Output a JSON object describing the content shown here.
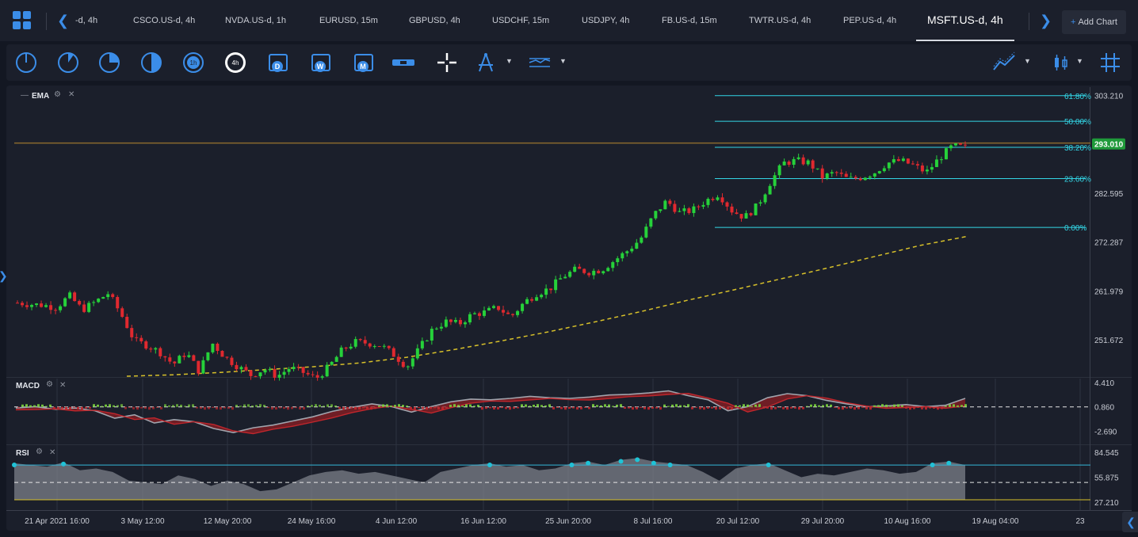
{
  "tabs": [
    {
      "label": "-d, 4h"
    },
    {
      "label": "CSCO.US-d, 4h"
    },
    {
      "label": "NVDA.US-d, 1h"
    },
    {
      "label": "EURUSD, 15m"
    },
    {
      "label": "GBPUSD, 4h"
    },
    {
      "label": "USDCHF, 15m"
    },
    {
      "label": "USDJPY, 4h"
    },
    {
      "label": "FB.US-d, 15m"
    },
    {
      "label": "TWTR.US-d, 4h"
    },
    {
      "label": "PEP.US-d, 4h"
    },
    {
      "label": "MSFT.US-d, 4h",
      "active": true
    }
  ],
  "add_chart_label": "Add Chart",
  "toolbar": {
    "timeframe_icons": [
      "clock-quarter-icon",
      "clock-third-icon",
      "clock-half-icon",
      "clock-full-icon",
      "clock-1h-icon",
      "clock-4h-icon"
    ],
    "clock_1h_label": "1h",
    "clock_4h_label": "4h",
    "calendar_labels": [
      "D",
      "W",
      "M"
    ],
    "right_icons": [
      "chart-type-line-icon",
      "candles-icon",
      "crosshair-grid-icon"
    ]
  },
  "indicators": {
    "ema_label": "EMA",
    "macd_label": "MACD",
    "rsi_label": "RSI"
  },
  "colors": {
    "up": "#26d13a",
    "down": "#e0292f",
    "fib": "#33d6e6",
    "ema": "#d8c12a",
    "price_badge": "#1f9a3a",
    "accent": "#3b8de8"
  },
  "chart_data": {
    "type": "candlestick",
    "symbol": "MSFT.US-d, 4h",
    "y_ticks": [
      "303.210",
      "282.595",
      "272.287",
      "261.979",
      "251.672"
    ],
    "ylim": [
      244,
      305
    ],
    "current_price": "293.010",
    "resistance_line": 293.2,
    "fibonacci": [
      {
        "label": "61.80%",
        "value": 303.2
      },
      {
        "label": "50.00%",
        "value": 297.8
      },
      {
        "label": "38.20%",
        "value": 292.3
      },
      {
        "label": "23.60%",
        "value": 285.7
      },
      {
        "label": "0.00%",
        "value": 275.4
      }
    ],
    "x_ticks": [
      "21 Apr 2021 16:00",
      "3 May 12:00",
      "12 May 20:00",
      "24 May 16:00",
      "4 Jun 12:00",
      "16 Jun 12:00",
      "25 Jun 20:00",
      "8 Jul 16:00",
      "20 Jul 12:00",
      "29 Jul 20:00",
      "10 Aug 16:00",
      "19 Aug 04:00",
      "23"
    ],
    "close_path": [
      259.5,
      259.2,
      259.0,
      258.5,
      261.0,
      258.0,
      259.7,
      261.5,
      257.0,
      251.5,
      250.5,
      249.0,
      246.5,
      249.0,
      245.0,
      251.0,
      248.0,
      246.0,
      244.2,
      245.5,
      244.0,
      245.8,
      244.8,
      243.5,
      246.0,
      249.5,
      251.2,
      251.0,
      250.5,
      248.5,
      246.0,
      250.0,
      254.0,
      255.5,
      255.0,
      257.0,
      257.5,
      258.5,
      256.5,
      259.5,
      261.5,
      262.5,
      265.0,
      266.5,
      266.0,
      266.5,
      268.5,
      270.5,
      273.0,
      278.0,
      281.0,
      278.5,
      279.0,
      281.0,
      282.5,
      279.0,
      277.5,
      280.0,
      285.0,
      289.0,
      289.5,
      289.0,
      286.0,
      287.0,
      285.5,
      286.0,
      287.0,
      289.0,
      289.5,
      288.5,
      287.0,
      290.0,
      292.5,
      292.3
    ],
    "ema_path": [
      244.0,
      244.3,
      244.8,
      245.4,
      246.0,
      246.8,
      248.0,
      249.6,
      251.4,
      253.3,
      255.4,
      257.6,
      260.0,
      262.2,
      264.5,
      266.8,
      269.2,
      271.6,
      273.5
    ],
    "ema_x_range": [
      "3 May 12:00",
      "19 Aug 04:00"
    ],
    "macd": {
      "y_ticks": [
        "4.410",
        "0.860",
        "-2.690"
      ],
      "ylim": [
        -4.5,
        5.0
      ],
      "zero": 0.86,
      "macd_path": [
        0.7,
        0.9,
        0.5,
        0.7,
        0.3,
        -0.8,
        -0.3,
        -1.5,
        -1.0,
        -1.3,
        -2.3,
        -2.9,
        -2.2,
        -1.8,
        -1.2,
        -0.6,
        0.2,
        0.8,
        1.3,
        0.9,
        0.1,
        0.9,
        1.6,
        2.0,
        1.9,
        2.1,
        2.4,
        2.2,
        2.1,
        2.3,
        2.6,
        2.7,
        2.9,
        3.2,
        2.5,
        1.9,
        0.3,
        0.9,
        2.2,
        2.8,
        2.5,
        1.8,
        1.3,
        0.9,
        1.0,
        1.2,
        0.9,
        1.1,
        2.1
      ]
    },
    "rsi": {
      "y_ticks": [
        "84.545",
        "55.875",
        "27.210"
      ],
      "ylim": [
        20,
        92
      ],
      "upper": 70.0,
      "lower": 30.0,
      "middle": 50.0,
      "rsi_path": [
        72,
        70,
        68,
        73,
        64,
        66,
        62,
        52,
        50,
        48,
        58,
        54,
        46,
        52,
        48,
        40,
        42,
        50,
        58,
        62,
        64,
        60,
        62,
        58,
        54,
        50,
        62,
        66,
        70,
        72,
        68,
        70,
        64,
        66,
        72,
        74,
        70,
        76,
        78,
        74,
        72,
        70,
        62,
        52,
        66,
        70,
        72,
        64,
        56,
        60,
        58,
        62,
        66,
        64,
        60,
        62,
        72,
        74,
        70
      ]
    }
  }
}
